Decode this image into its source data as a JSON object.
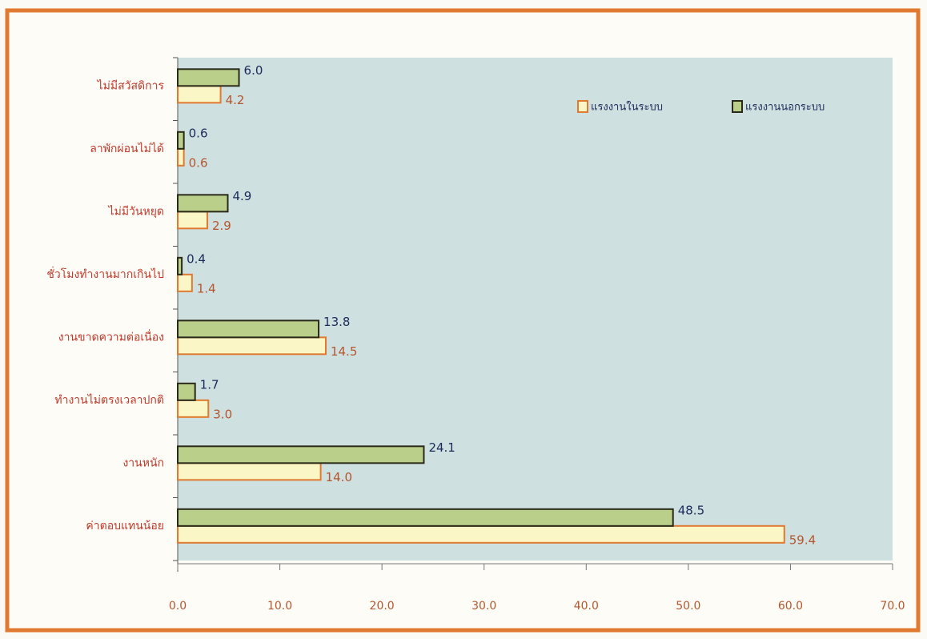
{
  "chart_data": {
    "type": "barh",
    "categories": [
      "ไม่มีสวัสดิการ",
      "ลาพักผ่อนไม่ได้",
      "ไม่มีวันหยุด",
      "ชั่วโมงทำงานมากเกินไป",
      "งานขาดความต่อเนื่อง",
      "ทำงานไม่ตรงเวลาปกติ",
      "งานหนัก",
      "ค่าตอบแทนน้อย"
    ],
    "series": [
      {
        "name": "แรงงานในระบบ",
        "color": "#fbf6c6",
        "values": [
          4.2,
          0.6,
          2.9,
          1.4,
          14.5,
          3.0,
          14.0,
          59.4
        ],
        "value_labels": [
          "4.2",
          "0.6",
          "2.9",
          "1.4",
          "14.5",
          "3.0",
          "14.0",
          "59.4"
        ]
      },
      {
        "name": "แรงงานนอกระบบ",
        "color": "#b9cf8a",
        "values": [
          6.0,
          0.6,
          4.9,
          0.4,
          13.8,
          1.7,
          24.1,
          48.5
        ],
        "value_labels": [
          "6.0",
          "0.6",
          "4.9",
          "0.4",
          "13.8",
          "1.7",
          "24.1",
          "48.5"
        ]
      }
    ],
    "xlim": [
      0,
      70
    ],
    "xticks": [
      {
        "value": 0,
        "label": "0.0"
      },
      {
        "value": 10,
        "label": "10.0"
      },
      {
        "value": 20,
        "label": "20.0"
      },
      {
        "value": 30,
        "label": "30.0"
      },
      {
        "value": 40,
        "label": "40.0"
      },
      {
        "value": 50,
        "label": "50.0"
      },
      {
        "value": 60,
        "label": "60.0"
      },
      {
        "value": 70,
        "label": "70.0"
      }
    ],
    "legend": "upper right"
  }
}
